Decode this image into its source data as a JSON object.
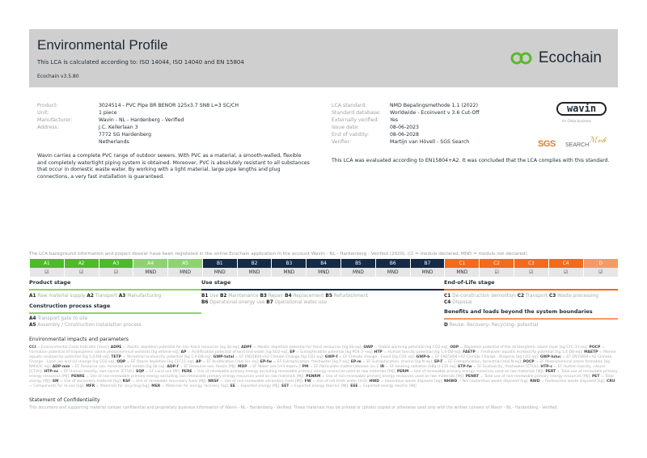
{
  "header": {
    "title": "Environmental Profile",
    "subtitle": "This LCA is calculated according to: ISO 14044, ISO 14040 and EN 15804",
    "version": "Ecochain v3.5.80",
    "brand": "Ecochain",
    "brand_color": "#5ab82e"
  },
  "product_info": [
    {
      "label": "Product:",
      "value": "3024514 - PVC Pipe BR BENOR 125x3.7 SN8 L=3 SC/CH"
    },
    {
      "label": "Unit:",
      "value": "1 piece"
    },
    {
      "label": "Manufacturer:",
      "value": "Wavin - NL - Hardenberg - Verified"
    },
    {
      "label": "Address:",
      "value": "J.C. Kellerlaan 3",
      "value2": "7772 SG Hardenberg",
      "value3": "Netherlands"
    }
  ],
  "lca_info": [
    {
      "label": "LCA standard:",
      "value": "NMD Bepalingsmethode 1.1 (2022)"
    },
    {
      "label": "Standard database:",
      "value": "Worldwide - Ecoinvent v 3.6 Cut-Off"
    },
    {
      "label": "Externally verified:",
      "value": "Yes"
    },
    {
      "label": "Issue date:",
      "value": "08-06-2023"
    },
    {
      "label": "End of validity:",
      "value": "08-06-2028"
    },
    {
      "label": "Verifier:",
      "value": "Martijn van Hövell - SGS Search"
    }
  ],
  "logos": {
    "wavin": "wavin",
    "wavin_tag": "An Orbia business",
    "sgs": "SGS",
    "search": "SEARCH",
    "signature": "Mvh"
  },
  "description": "Wavin carries a complete PVC range of outdoor sewers. With PVC as a material, a smooth-walled, flexible and completely watertight piping system is obtained. Moreover, PVC is absolutely resistant to all substances that occur in domestic waste water. By working with a light material, large pipe lengths and plug connections, a very fast installation is guaranteed.",
  "conclusion": "This LCA was evaluated according to EN15804+A2. It was concluded that the LCA complies with this standard.",
  "registration_note": "The LCA background information and project dossier have been registered in the online Ecochain application in the account Wavin - NL - Hardenberg - Verified (2020). (☑ = module declared, MND = module not declared).",
  "modules": [
    {
      "code": "A1",
      "status": "☑",
      "color": "#4cbb2a"
    },
    {
      "code": "A2",
      "status": "☑",
      "color": "#4cbb2a"
    },
    {
      "code": "A3",
      "status": "☑",
      "color": "#4cbb2a"
    },
    {
      "code": "A4",
      "status": "MND",
      "color": "#8fd36e"
    },
    {
      "code": "A5",
      "status": "MND",
      "color": "#8fd36e"
    },
    {
      "code": "B1",
      "status": "MND",
      "color": "#152a45"
    },
    {
      "code": "B2",
      "status": "MND",
      "color": "#152a45"
    },
    {
      "code": "B3",
      "status": "MND",
      "color": "#152a45"
    },
    {
      "code": "B4",
      "status": "MND",
      "color": "#152a45"
    },
    {
      "code": "B5",
      "status": "MND",
      "color": "#152a45"
    },
    {
      "code": "B6",
      "status": "MND",
      "color": "#152a45"
    },
    {
      "code": "B7",
      "status": "MND",
      "color": "#152a45"
    },
    {
      "code": "C1",
      "status": "MND",
      "color": "#f26a1b"
    },
    {
      "code": "C2",
      "status": "☑",
      "color": "#f26a1b"
    },
    {
      "code": "C3",
      "status": "☑",
      "color": "#f26a1b"
    },
    {
      "code": "C4",
      "status": "☑",
      "color": "#f26a1b"
    },
    {
      "code": "D",
      "status": "☑",
      "color": "#f59a66"
    }
  ],
  "stages": {
    "product": {
      "title": "Product stage",
      "items": [
        [
          "A1",
          "Raw material supply"
        ],
        [
          "A2",
          "Transport"
        ],
        [
          "A3",
          "Manufacturing"
        ]
      ]
    },
    "construction": {
      "title": "Construction process stage",
      "items": [
        [
          "A4",
          "Transport gate to site"
        ],
        [
          "A5",
          "Assembly / Construction installation process"
        ]
      ]
    },
    "use": {
      "title": "Use stage",
      "items": [
        [
          "B1",
          "Use"
        ],
        [
          "B2",
          "Maintenance"
        ],
        [
          "B3",
          "Repair"
        ],
        [
          "B4",
          "Replacement"
        ],
        [
          "B5",
          "Refurbishment"
        ],
        [
          "B6",
          "Operational energy use"
        ],
        [
          "B7",
          "Operational water use"
        ]
      ]
    },
    "eol": {
      "title": "End-of-Life stage",
      "items": [
        [
          "C1",
          "De-construction demolition"
        ],
        [
          "C2",
          "Transport"
        ],
        [
          "C3",
          "Waste processing"
        ],
        [
          "C4",
          "Disposal"
        ]
      ]
    },
    "benefits": {
      "title": "Benefits and loads beyond the system boundaries",
      "items": [
        [
          "D",
          "Reuse- Recovery- Recycling- potential"
        ]
      ]
    }
  },
  "impacts": {
    "title": "Environmental impacts and parameters",
    "items": [
      [
        "CCI",
        "Environmental Costs Indicator [euro]"
      ],
      [
        "ADPE",
        "Abiotic depletion potential for non-fossil resources [kg Sb-eq]"
      ],
      [
        "ADPF",
        "Abiotic depletion potential for fossil resources [kg Sb-eq]"
      ],
      [
        "GWP",
        "Global warming potential [kg CO2-eq]"
      ],
      [
        "ODP",
        "Depletion potential of the stratospheric ozone layer [kg CFC-11-eq]"
      ],
      [
        "POCP",
        "Formation potential of tropospheric ozone photochemical oxidants [kg ethene-eq]"
      ],
      [
        "AP",
        "Acidification potential of land and water [kg SO2-eq]"
      ],
      [
        "EP",
        "Eutrophication potential [kg PO4 3--eq]"
      ],
      [
        "HTP",
        "Human toxicity potential [kg 1,4-DB-eq]"
      ],
      [
        "FAETP",
        "Freshwater aquatic ecotoxicity potential [kg 1,4-DB-eq]"
      ],
      [
        "MAETP",
        "Marine aquatic ecotoxicity potential [kg 1,4-DB-eq]"
      ],
      [
        "TETP",
        "Terrestrial ecotoxicity potential [kg 1,4-DB-eq]"
      ],
      [
        "GWP-total",
        "EF EN15804+A2 Climate Change [kg CO2 eq]"
      ],
      [
        "GWP-f",
        "EF Climate change - Fossil [kg CO2 eq]"
      ],
      [
        "GWP-b",
        "EF EN15804+A2 Climate Change - Biogenic [kg CO2 eq]"
      ],
      [
        "GWP-luluc",
        "EF EN15804+A2 Climate Change - Land use and LU change [kg CO2 eq]"
      ],
      [
        "ODP",
        "EF Ozone depletion [kg CFC11 eq]"
      ],
      [
        "AP",
        "EF Acidification [mol H+ eq]"
      ],
      [
        "EP-fw",
        "EF Eutrophication, freshwater [kg P eq]"
      ],
      [
        "EP-m",
        "EF Eutrophication, marine [kg N eq]"
      ],
      [
        "EP-T",
        "EF Eutrophication, terrestrial [mol N eq]"
      ],
      [
        "POCP",
        "EF Photochemical ozone formation [kg NMVOC eq]"
      ],
      [
        "ADP-mm",
        "EF Resource use, minerals and metals [kg Sb eq]"
      ],
      [
        "ADP-f",
        "EF Resource use, fossils [MJ]"
      ],
      [
        "MDP",
        "EF Water use [m3 depriv.]"
      ],
      [
        "PM",
        "EF Particulate matter [disease inc.]"
      ],
      [
        "IR",
        "EF Ionising radiation [kBq U-235 eq]"
      ],
      [
        "ETP-fw",
        "EF Ecotoxicity, freshwater [CTUe]"
      ],
      [
        "HTP-c",
        "EF Human toxicity, cancer [CTUh]"
      ],
      [
        "HTP-nc",
        "EF Human toxicity, non-cancer [CTUh]"
      ],
      [
        "SQP",
        "EF Land use [Pt]"
      ],
      [
        "PERE",
        "Use of renewable primary energy excluding renewable primary energy resources used as raw materials [MJ]"
      ],
      [
        "PERM",
        "Use of renewable primary energy resources used as raw materials [MJ]"
      ],
      [
        "PERT",
        "Total use of renewable primary energy resources [MJ]"
      ],
      [
        "PENRE",
        "Use of non-renewable primary energy excluding non-renewable primary energy resources used as raw materials [MJ]"
      ],
      [
        "PENRM",
        "Use of non-renewable primary energy resources used as raw materials [MJ]"
      ],
      [
        "PENRT",
        "Total use of non-renewable primary energy resources [MJ]"
      ],
      [
        "PET",
        "Total energy [MJ]"
      ],
      [
        "SM",
        "Use of secondary material [kg]"
      ],
      [
        "RSF",
        "Use of renewable secondary fuels [MJ]"
      ],
      [
        "NRSF",
        "Use of non-renewable secondary fuels [MJ]"
      ],
      [
        "FW",
        "Use of net fresh water [m3]"
      ],
      [
        "HWD",
        "Hazardous waste disposed [kg]"
      ],
      [
        "NHWD",
        "Non-hazardous waste disposed [kg]"
      ],
      [
        "RWD",
        "Radioactive waste disposed [kg]"
      ],
      [
        "CRU",
        "Components for re-use [kg]"
      ],
      [
        "MFR",
        "Materials for recycling [kg]"
      ],
      [
        "MER",
        "Materials for energy recovery [kg]"
      ],
      [
        "EE",
        "Exported energy [MJ]"
      ],
      [
        "EET",
        "Exported energy thermic [MJ]"
      ],
      [
        "EEE",
        "Exported energy electric [MJ]"
      ]
    ]
  },
  "confidentiality": {
    "title": "Statement of Confidentiality",
    "text": "This document and supporting material contain confidential and proprietary business information of Wavin - NL - Hardenberg - Verified. These materials may be printed or (photo) copied or otherwise used only with the written consent of Wavin - NL - Hardenberg - Verified."
  }
}
